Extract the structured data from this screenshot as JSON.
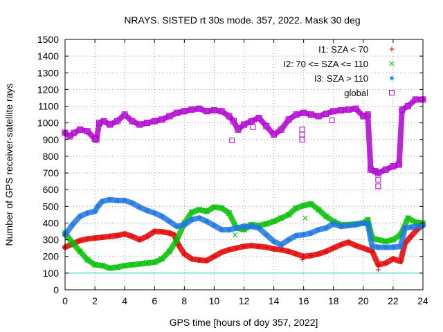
{
  "chart_data": {
    "type": "scatter",
    "title": "NRAYS. SISTED rt 30s mode. 357, 2022. Mask 30 deg",
    "xlabel": "GPS time [hours of doy 357, 2022]",
    "ylabel": "Number of GPS receiver-satellite rays",
    "xlim": [
      0,
      24
    ],
    "ylim": [
      0,
      1500
    ],
    "xticks": [
      "0",
      "2",
      "4",
      "6",
      "8",
      "10",
      "12",
      "14",
      "16",
      "18",
      "20",
      "22",
      "24"
    ],
    "yticks": [
      "0",
      "100",
      "200",
      "300",
      "400",
      "500",
      "600",
      "700",
      "800",
      "900",
      "1000",
      "1100",
      "1200",
      "1300",
      "1400",
      "1500"
    ],
    "grid": true,
    "legend_position": "top-right",
    "reference_line": {
      "y": 100,
      "color": "#33cccc"
    },
    "series": [
      {
        "name": "I1: SZA < 70",
        "color": "#e00000",
        "marker": "+",
        "x": [
          0,
          0.5,
          1,
          1.5,
          2,
          2.5,
          3,
          3.5,
          4,
          4.5,
          5,
          5.5,
          6,
          6.5,
          7,
          7.3,
          7.6,
          8,
          8.5,
          9,
          9.5,
          10,
          10.5,
          11,
          11.5,
          12,
          12.5,
          13,
          13.5,
          14,
          14.5,
          15,
          15.5,
          16,
          16.5,
          17,
          17.5,
          18,
          18.5,
          19,
          19.5,
          20,
          20.3,
          20.6,
          21,
          21.5,
          22,
          22.5,
          22.8,
          23.2,
          23.6,
          24
        ],
        "y": [
          255,
          275,
          295,
          305,
          310,
          315,
          320,
          325,
          335,
          320,
          300,
          320,
          350,
          348,
          340,
          330,
          270,
          215,
          185,
          178,
          175,
          200,
          225,
          240,
          250,
          260,
          265,
          260,
          255,
          245,
          240,
          230,
          215,
          200,
          205,
          215,
          230,
          250,
          270,
          285,
          265,
          250,
          240,
          230,
          150,
          160,
          185,
          170,
          280,
          320,
          360,
          390
        ]
      },
      {
        "name": "I2: 70 <= SZA <= 110",
        "color": "#00c000",
        "marker": "x",
        "x": [
          0,
          0.5,
          1,
          1.5,
          2,
          2.5,
          3,
          3.5,
          4,
          4.5,
          5,
          5.5,
          6,
          6.5,
          7,
          7.5,
          8,
          8.5,
          9,
          9.5,
          10,
          10.5,
          11,
          11.5,
          12,
          12.5,
          13,
          13.5,
          14,
          14.5,
          15,
          15.5,
          16,
          16.5,
          17,
          17.5,
          18,
          18.5,
          19,
          19.5,
          20,
          20.3,
          20.6,
          21,
          21.5,
          22,
          22.5,
          23,
          23.5,
          24
        ],
        "y": [
          340,
          280,
          230,
          180,
          150,
          145,
          130,
          135,
          145,
          150,
          155,
          160,
          165,
          185,
          230,
          300,
          400,
          465,
          480,
          470,
          495,
          490,
          460,
          370,
          360,
          390,
          385,
          395,
          410,
          430,
          450,
          490,
          505,
          515,
          480,
          440,
          410,
          390,
          390,
          395,
          400,
          420,
          310,
          300,
          290,
          300,
          330,
          430,
          405,
          400
        ]
      },
      {
        "name": "I3: SZA > 110",
        "color": "#1e78e0",
        "marker": "*",
        "x": [
          0,
          0.5,
          1,
          1.5,
          2,
          2.2,
          2.5,
          3,
          3.5,
          4,
          4.5,
          5,
          5.5,
          6,
          6.5,
          7,
          7.5,
          8,
          8.5,
          9,
          9.5,
          10,
          10.5,
          11,
          11.5,
          12,
          12.5,
          13,
          13.5,
          14,
          14.5,
          15,
          15.5,
          16,
          16.5,
          17,
          17.5,
          18,
          18.5,
          19,
          19.5,
          20,
          20.3,
          20.6,
          21,
          21.5,
          22,
          22.5,
          22.8,
          23.2,
          23.6,
          24
        ],
        "y": [
          330,
          390,
          440,
          460,
          470,
          500,
          530,
          540,
          535,
          535,
          520,
          495,
          475,
          460,
          440,
          410,
          380,
          390,
          420,
          430,
          410,
          385,
          360,
          360,
          370,
          380,
          380,
          370,
          330,
          290,
          270,
          300,
          325,
          330,
          340,
          360,
          370,
          395,
          380,
          385,
          390,
          400,
          395,
          260,
          255,
          255,
          255,
          260,
          370,
          375,
          380,
          385
        ]
      },
      {
        "name": "global",
        "color": "#b000d0",
        "marker": "square",
        "x": [
          0,
          0.3,
          0.6,
          1,
          1.5,
          2,
          2.1,
          2.3,
          2.6,
          3,
          3.5,
          4,
          4.5,
          5,
          5.5,
          6,
          6.5,
          7,
          7.5,
          8,
          8.5,
          9,
          9.5,
          10,
          10.5,
          11,
          11.3,
          11.6,
          12,
          12.5,
          13,
          13.5,
          14,
          14.5,
          15,
          15.5,
          16,
          16.5,
          17,
          17.5,
          18,
          18.5,
          19,
          19.5,
          20,
          20.3,
          20.5,
          20.8,
          21,
          21.5,
          22,
          22.4,
          22.6,
          23,
          23.5,
          24
        ],
        "y": [
          940,
          920,
          940,
          960,
          950,
          905,
          900,
          1000,
          1010,
          990,
          1010,
          1050,
          1010,
          990,
          1000,
          1010,
          1020,
          1040,
          1060,
          1070,
          1080,
          1085,
          1070,
          1075,
          1070,
          1040,
          1010,
          960,
          990,
          1010,
          1030,
          980,
          930,
          960,
          1020,
          1050,
          1060,
          1050,
          1040,
          1055,
          1070,
          1075,
          1080,
          1085,
          1040,
          1050,
          720,
          710,
          700,
          720,
          740,
          750,
          1080,
          1100,
          1140,
          1140
        ]
      }
    ],
    "outliers": [
      {
        "series": 3,
        "x": 11.2,
        "y": 895
      },
      {
        "series": 3,
        "x": 12.6,
        "y": 975
      },
      {
        "series": 3,
        "x": 15.9,
        "y": 900
      },
      {
        "series": 3,
        "x": 15.9,
        "y": 930
      },
      {
        "series": 3,
        "x": 15.9,
        "y": 960
      },
      {
        "series": 3,
        "x": 21.0,
        "y": 620
      },
      {
        "series": 3,
        "x": 21.0,
        "y": 660
      },
      {
        "series": 3,
        "x": 17.9,
        "y": 1015
      },
      {
        "series": 0,
        "x": 21.0,
        "y": 120
      },
      {
        "series": 0,
        "x": 15.9,
        "y": 180
      },
      {
        "series": 1,
        "x": 16.1,
        "y": 430
      },
      {
        "series": 1,
        "x": 11.4,
        "y": 330
      }
    ]
  }
}
